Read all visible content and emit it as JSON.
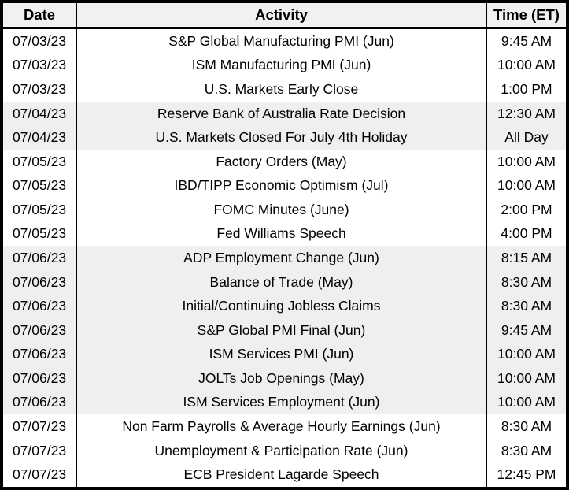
{
  "colors": {
    "border": "#000000",
    "text": "#000000",
    "row_bg": "#ffffff",
    "band_bg": "#efefef",
    "header_bg": "#f1f1f1"
  },
  "table": {
    "columns": {
      "date_label": "Date",
      "activity_label": "Activity",
      "time_label": "Time (ET)"
    },
    "rows": [
      {
        "date": "07/03/23",
        "activity": "S&P Global Manufacturing PMI (Jun)",
        "time": "9:45 AM",
        "shaded": false
      },
      {
        "date": "07/03/23",
        "activity": "ISM Manufacturing PMI (Jun)",
        "time": "10:00 AM",
        "shaded": false
      },
      {
        "date": "07/03/23",
        "activity": "U.S. Markets Early Close",
        "time": "1:00 PM",
        "shaded": false
      },
      {
        "date": "07/04/23",
        "activity": "Reserve Bank of Australia Rate Decision",
        "time": "12:30 AM",
        "shaded": true
      },
      {
        "date": "07/04/23",
        "activity": "U.S. Markets Closed For July 4th Holiday",
        "time": "All Day",
        "shaded": true
      },
      {
        "date": "07/05/23",
        "activity": "Factory Orders (May)",
        "time": "10:00 AM",
        "shaded": false
      },
      {
        "date": "07/05/23",
        "activity": "IBD/TIPP Economic Optimism (Jul)",
        "time": "10:00 AM",
        "shaded": false
      },
      {
        "date": "07/05/23",
        "activity": "FOMC Minutes (June)",
        "time": "2:00 PM",
        "shaded": false
      },
      {
        "date": "07/05/23",
        "activity": "Fed Williams Speech",
        "time": "4:00 PM",
        "shaded": false
      },
      {
        "date": "07/06/23",
        "activity": "ADP Employment Change (Jun)",
        "time": "8:15 AM",
        "shaded": true
      },
      {
        "date": "07/06/23",
        "activity": "Balance of Trade (May)",
        "time": "8:30 AM",
        "shaded": true
      },
      {
        "date": "07/06/23",
        "activity": "Initial/Continuing Jobless Claims",
        "time": "8:30 AM",
        "shaded": true
      },
      {
        "date": "07/06/23",
        "activity": "S&P Global PMI Final (Jun)",
        "time": "9:45 AM",
        "shaded": true
      },
      {
        "date": "07/06/23",
        "activity": "ISM Services PMI (Jun)",
        "time": "10:00 AM",
        "shaded": true
      },
      {
        "date": "07/06/23",
        "activity": "JOLTs Job Openings (May)",
        "time": "10:00 AM",
        "shaded": true
      },
      {
        "date": "07/06/23",
        "activity": "ISM Services Employment (Jun)",
        "time": "10:00 AM",
        "shaded": true
      },
      {
        "date": "07/07/23",
        "activity": "Non Farm Payrolls & Average Hourly Earnings (Jun)",
        "time": "8:30 AM",
        "shaded": false
      },
      {
        "date": "07/07/23",
        "activity": "Unemployment & Participation Rate (Jun)",
        "time": "8:30 AM",
        "shaded": false
      },
      {
        "date": "07/07/23",
        "activity": "ECB President Lagarde Speech",
        "time": "12:45 PM",
        "shaded": false
      }
    ]
  }
}
